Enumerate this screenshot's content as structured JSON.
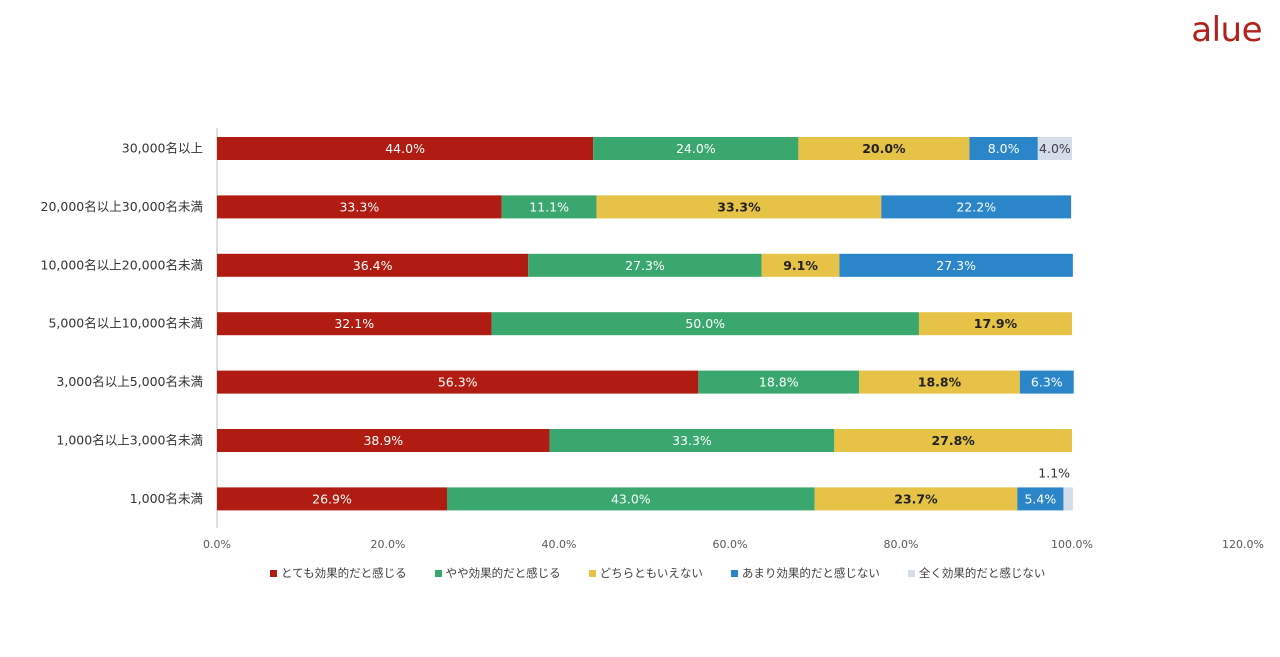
{
  "logo": "alue",
  "chart_data": {
    "type": "bar",
    "orientation": "horizontal",
    "stacked": true,
    "categories": [
      "30,000名以上",
      "20,000名以上30,000名未満",
      "10,000名以上20,000名未満",
      "5,000名以上10,000名未満",
      "3,000名以上5,000名未満",
      "1,000名以上3,000名未満",
      "1,000名未満"
    ],
    "series": [
      {
        "name": "とても効果的だと感じる",
        "color": "#b01c12",
        "label_color": "#ffffff",
        "values": [
          44.0,
          33.3,
          36.4,
          32.1,
          56.3,
          38.9,
          26.9
        ]
      },
      {
        "name": "やや効果的だと感じる",
        "color": "#3aa86e",
        "label_color": "#ffffff",
        "values": [
          24.0,
          11.1,
          27.3,
          50.0,
          18.8,
          33.3,
          43.0
        ]
      },
      {
        "name": "どちらともいえない",
        "color": "#e6c246",
        "label_color": "#222222",
        "values": [
          20.0,
          33.3,
          9.1,
          17.9,
          18.8,
          27.8,
          23.7
        ]
      },
      {
        "name": "あまり効果的だと感じない",
        "color": "#2a85c9",
        "label_color": "#ffffff",
        "values": [
          8.0,
          22.2,
          27.3,
          0,
          6.3,
          0,
          5.4
        ]
      },
      {
        "name": "全く効果的だと感じない",
        "color": "#d3dce8",
        "label_color": "#404040",
        "values": [
          4.0,
          0,
          0,
          0,
          0,
          0,
          1.1
        ]
      }
    ],
    "x_ticks": [
      "0.0%",
      "20.0%",
      "40.0%",
      "60.0%",
      "80.0%",
      "100.0%",
      "120.0%"
    ],
    "xlim": [
      0,
      120
    ],
    "grid": false,
    "legend_position": "bottom"
  }
}
